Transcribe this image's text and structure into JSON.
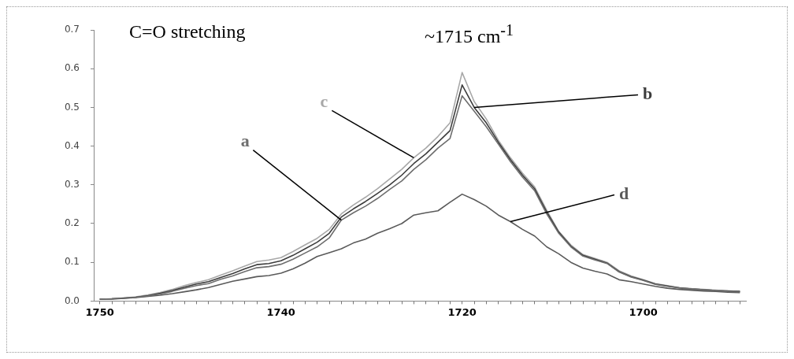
{
  "chart_data": {
    "type": "line",
    "annotations": [
      "C=O stretching",
      "~1715 cm$^{-1}$"
    ],
    "categories": [
      "1750",
      null,
      null,
      null,
      null,
      null,
      null,
      null,
      null,
      null,
      null,
      null,
      null,
      null,
      null,
      "1740",
      null,
      null,
      null,
      null,
      null,
      null,
      null,
      null,
      null,
      null,
      null,
      null,
      null,
      null,
      "1720",
      null,
      null,
      null,
      null,
      null,
      null,
      null,
      null,
      null,
      null,
      null,
      null,
      null,
      null,
      "1700",
      null,
      null,
      null,
      null,
      null,
      null,
      null,
      null
    ],
    "series": [
      {
        "name": "a",
        "color": "#6e6e6e",
        "values": [
          0.005,
          0.006,
          0.007,
          0.01,
          0.013,
          0.018,
          0.025,
          0.033,
          0.04,
          0.045,
          0.056,
          0.065,
          0.076,
          0.086,
          0.089,
          0.095,
          0.108,
          0.124,
          0.14,
          0.163,
          0.209,
          0.228,
          0.245,
          0.265,
          0.288,
          0.31,
          0.34,
          0.365,
          0.395,
          0.42,
          0.53,
          0.49,
          0.45,
          0.405,
          0.36,
          0.32,
          0.285,
          0.225,
          0.175,
          0.14,
          0.116,
          0.106,
          0.097,
          0.075,
          0.062,
          0.053,
          0.043,
          0.038,
          0.034,
          0.031,
          0.029,
          0.027,
          0.025,
          0.024
        ]
      },
      {
        "name": "b",
        "color": "#3c3c3c",
        "values": [
          0.005,
          0.006,
          0.008,
          0.01,
          0.014,
          0.02,
          0.027,
          0.036,
          0.044,
          0.05,
          0.061,
          0.071,
          0.083,
          0.094,
          0.097,
          0.104,
          0.118,
          0.135,
          0.152,
          0.175,
          0.217,
          0.238,
          0.257,
          0.278,
          0.3,
          0.325,
          0.355,
          0.38,
          0.41,
          0.44,
          0.558,
          0.5,
          0.46,
          0.41,
          0.365,
          0.325,
          0.29,
          0.23,
          0.178,
          0.142,
          0.118,
          0.108,
          0.098,
          0.076,
          0.063,
          0.054,
          0.044,
          0.039,
          0.034,
          0.031,
          0.029,
          0.027,
          0.026,
          0.025
        ]
      },
      {
        "name": "c",
        "color": "#a8a8a8",
        "values": [
          0.005,
          0.006,
          0.008,
          0.011,
          0.016,
          0.022,
          0.03,
          0.04,
          0.048,
          0.055,
          0.067,
          0.078,
          0.09,
          0.102,
          0.106,
          0.112,
          0.128,
          0.145,
          0.162,
          0.185,
          0.225,
          0.248,
          0.268,
          0.29,
          0.315,
          0.34,
          0.37,
          0.395,
          0.425,
          0.46,
          0.59,
          0.515,
          0.47,
          0.415,
          0.37,
          0.33,
          0.295,
          0.235,
          0.18,
          0.145,
          0.12,
          0.11,
          0.1,
          0.078,
          0.065,
          0.055,
          0.045,
          0.04,
          0.035,
          0.032,
          0.03,
          0.028,
          0.026,
          0.025
        ]
      },
      {
        "name": "d",
        "color": "#5a5a5a",
        "values": [
          0.005,
          0.005,
          0.007,
          0.009,
          0.012,
          0.015,
          0.019,
          0.024,
          0.029,
          0.035,
          0.043,
          0.051,
          0.057,
          0.063,
          0.066,
          0.072,
          0.083,
          0.098,
          0.115,
          0.125,
          0.135,
          0.15,
          0.16,
          0.175,
          0.187,
          0.2,
          0.222,
          0.228,
          0.233,
          0.255,
          0.276,
          0.262,
          0.245,
          0.222,
          0.205,
          0.185,
          0.168,
          0.14,
          0.122,
          0.1,
          0.085,
          0.077,
          0.07,
          0.055,
          0.05,
          0.044,
          0.038,
          0.033,
          0.03,
          0.028,
          0.026,
          0.025,
          0.023,
          0.022
        ]
      }
    ],
    "ylim": [
      0,
      0.7
    ],
    "yticks": [
      {
        "value": 0,
        "label": "0.0"
      },
      0.1,
      0.2,
      0.3,
      0.4,
      0.5,
      0.6,
      0.7
    ],
    "legend": false
  }
}
